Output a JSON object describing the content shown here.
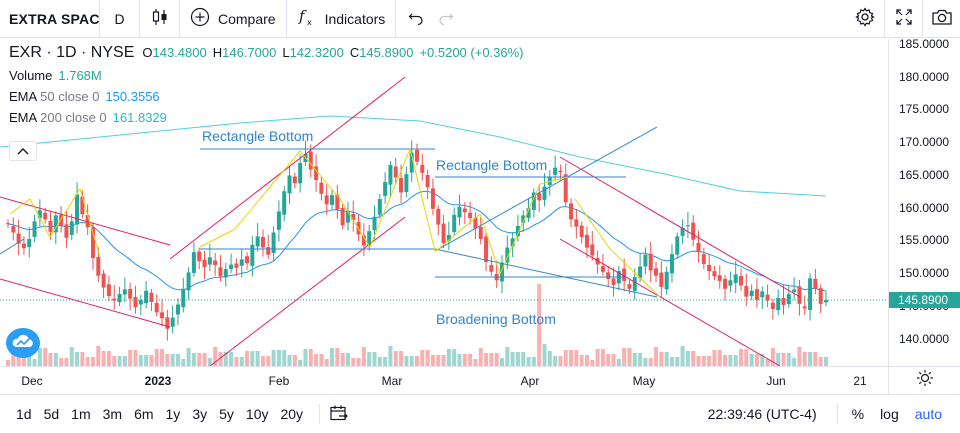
{
  "toolbar": {
    "symbol": "EXTRA SPACE",
    "interval": "D",
    "compare_label": "Compare",
    "indicators_label": "Indicators",
    "chart_type_icon": "candles-icon",
    "right_icons": [
      "gear-icon",
      "fullscreen-icon",
      "camera-icon"
    ]
  },
  "legend": {
    "title": "EXR · 1D · NYSE",
    "open_label": "O",
    "open": "143.4800",
    "high_label": "H",
    "high": "146.7000",
    "low_label": "L",
    "low": "142.3200",
    "close_label": "C",
    "close": "145.8900",
    "change": "+0.5200 (+0.36%)",
    "volume_name": "Volume",
    "volume_value": "1.768M",
    "ema50_name": "EMA",
    "ema50_params": "50 close 0",
    "ema50_value": "150.3556",
    "ema200_name": "EMA",
    "ema200_params": "200 close 0",
    "ema200_value": "161.8329"
  },
  "annotations": {
    "rect1": "Rectangle Bottom",
    "rect2": "Rectangle Bottom",
    "broadening": "Broadening Bottom"
  },
  "price_axis": {
    "labels": [
      "185.0000",
      "180.0000",
      "175.0000",
      "170.0000",
      "165.0000",
      "160.0000",
      "155.0000",
      "150.0000",
      "145.0000",
      "140.0000"
    ],
    "last_price": "145.8900"
  },
  "time_axis": {
    "labels": [
      "Dec",
      "2023",
      "Feb",
      "Mar",
      "Apr",
      "May",
      "Jun",
      "21"
    ]
  },
  "bottom": {
    "ranges": [
      "1d",
      "5d",
      "1m",
      "3m",
      "6m",
      "1y",
      "3y",
      "5y",
      "10y",
      "20y"
    ],
    "clock": "22:39:46 (UTC-4)",
    "percent": "%",
    "log": "log",
    "auto": "auto"
  },
  "colors": {
    "up": "#26a69a",
    "down": "#ef5350",
    "ema50": "#2196f3",
    "ema200": "#4dd0e1",
    "trendline_pink": "#e91e63",
    "pattern_line": "#2f86cc",
    "pattern_yellow": "#e6d700"
  },
  "chart_data": {
    "type": "candlestick",
    "symbol": "EXR",
    "interval": "1D",
    "exchange": "NYSE",
    "y_range": [
      135.7,
      188.0
    ],
    "last_ohlc": {
      "open": 143.48,
      "high": 146.7,
      "low": 142.32,
      "close": 145.89
    },
    "ema50_last": 150.3556,
    "ema200_last": 161.8329,
    "volume_last": "1.768M"
  }
}
